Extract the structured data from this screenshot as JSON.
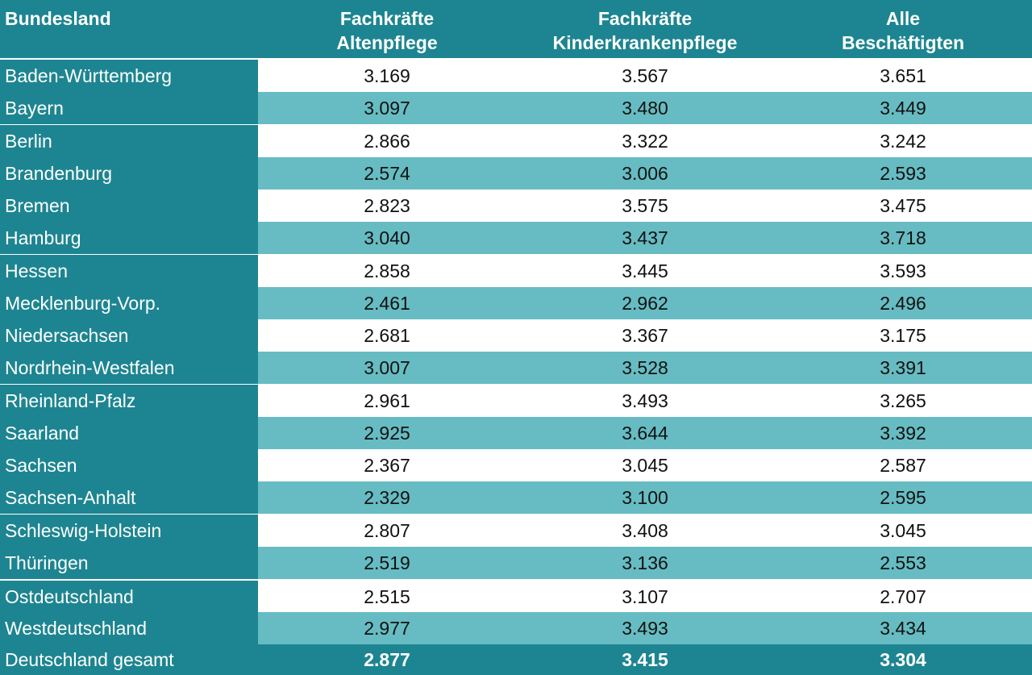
{
  "columns": {
    "label": "Bundesland",
    "col1": "Fachkräfte\nAltenpflege",
    "col2": "Fachkräfte\nKinderkrankenpflege",
    "col3": "Alle\nBeschäftigten"
  },
  "rows": [
    {
      "name": "Baden-Württemberg",
      "alten": "3.169",
      "kinder": "3.567",
      "alle": "3.651"
    },
    {
      "name": "Bayern",
      "alten": "3.097",
      "kinder": "3.480",
      "alle": "3.449"
    },
    {
      "name": "Berlin",
      "alten": "2.866",
      "kinder": "3.322",
      "alle": "3.242"
    },
    {
      "name": "Brandenburg",
      "alten": "2.574",
      "kinder": "3.006",
      "alle": "2.593"
    },
    {
      "name": "Bremen",
      "alten": "2.823",
      "kinder": "3.575",
      "alle": "3.475"
    },
    {
      "name": "Hamburg",
      "alten": "3.040",
      "kinder": "3.437",
      "alle": "3.718"
    },
    {
      "name": "Hessen",
      "alten": "2.858",
      "kinder": "3.445",
      "alle": "3.593"
    },
    {
      "name": "Mecklenburg-Vorp.",
      "alten": "2.461",
      "kinder": "2.962",
      "alle": "2.496"
    },
    {
      "name": "Niedersachsen",
      "alten": "2.681",
      "kinder": "3.367",
      "alle": "3.175"
    },
    {
      "name": "Nordrhein-Westfalen",
      "alten": "3.007",
      "kinder": "3.528",
      "alle": "3.391"
    },
    {
      "name": "Rheinland-Pfalz",
      "alten": "2.961",
      "kinder": "3.493",
      "alle": "3.265"
    },
    {
      "name": "Saarland",
      "alten": "2.925",
      "kinder": "3.644",
      "alle": "3.392"
    },
    {
      "name": "Sachsen",
      "alten": "2.367",
      "kinder": "3.045",
      "alle": "2.587"
    },
    {
      "name": "Sachsen-Anhalt",
      "alten": "2.329",
      "kinder": "3.100",
      "alle": "2.595"
    },
    {
      "name": "Schleswig-Holstein",
      "alten": "2.807",
      "kinder": "3.408",
      "alle": "3.045"
    },
    {
      "name": "Thüringen",
      "alten": "2.519",
      "kinder": "3.136",
      "alle": "2.553"
    }
  ],
  "summary": [
    {
      "name": "Ostdeutschland",
      "alten": "2.515",
      "kinder": "3.107",
      "alle": "2.707"
    },
    {
      "name": "Westdeutschland",
      "alten": "2.977",
      "kinder": "3.493",
      "alle": "3.434"
    }
  ],
  "total": {
    "name": "Deutschland gesamt",
    "alten": "2.877",
    "kinder": "3.415",
    "alle": "3.304"
  },
  "colors": {
    "header_teal": "#1d8591",
    "stripe_teal": "#66bcc2",
    "white": "#ffffff"
  }
}
